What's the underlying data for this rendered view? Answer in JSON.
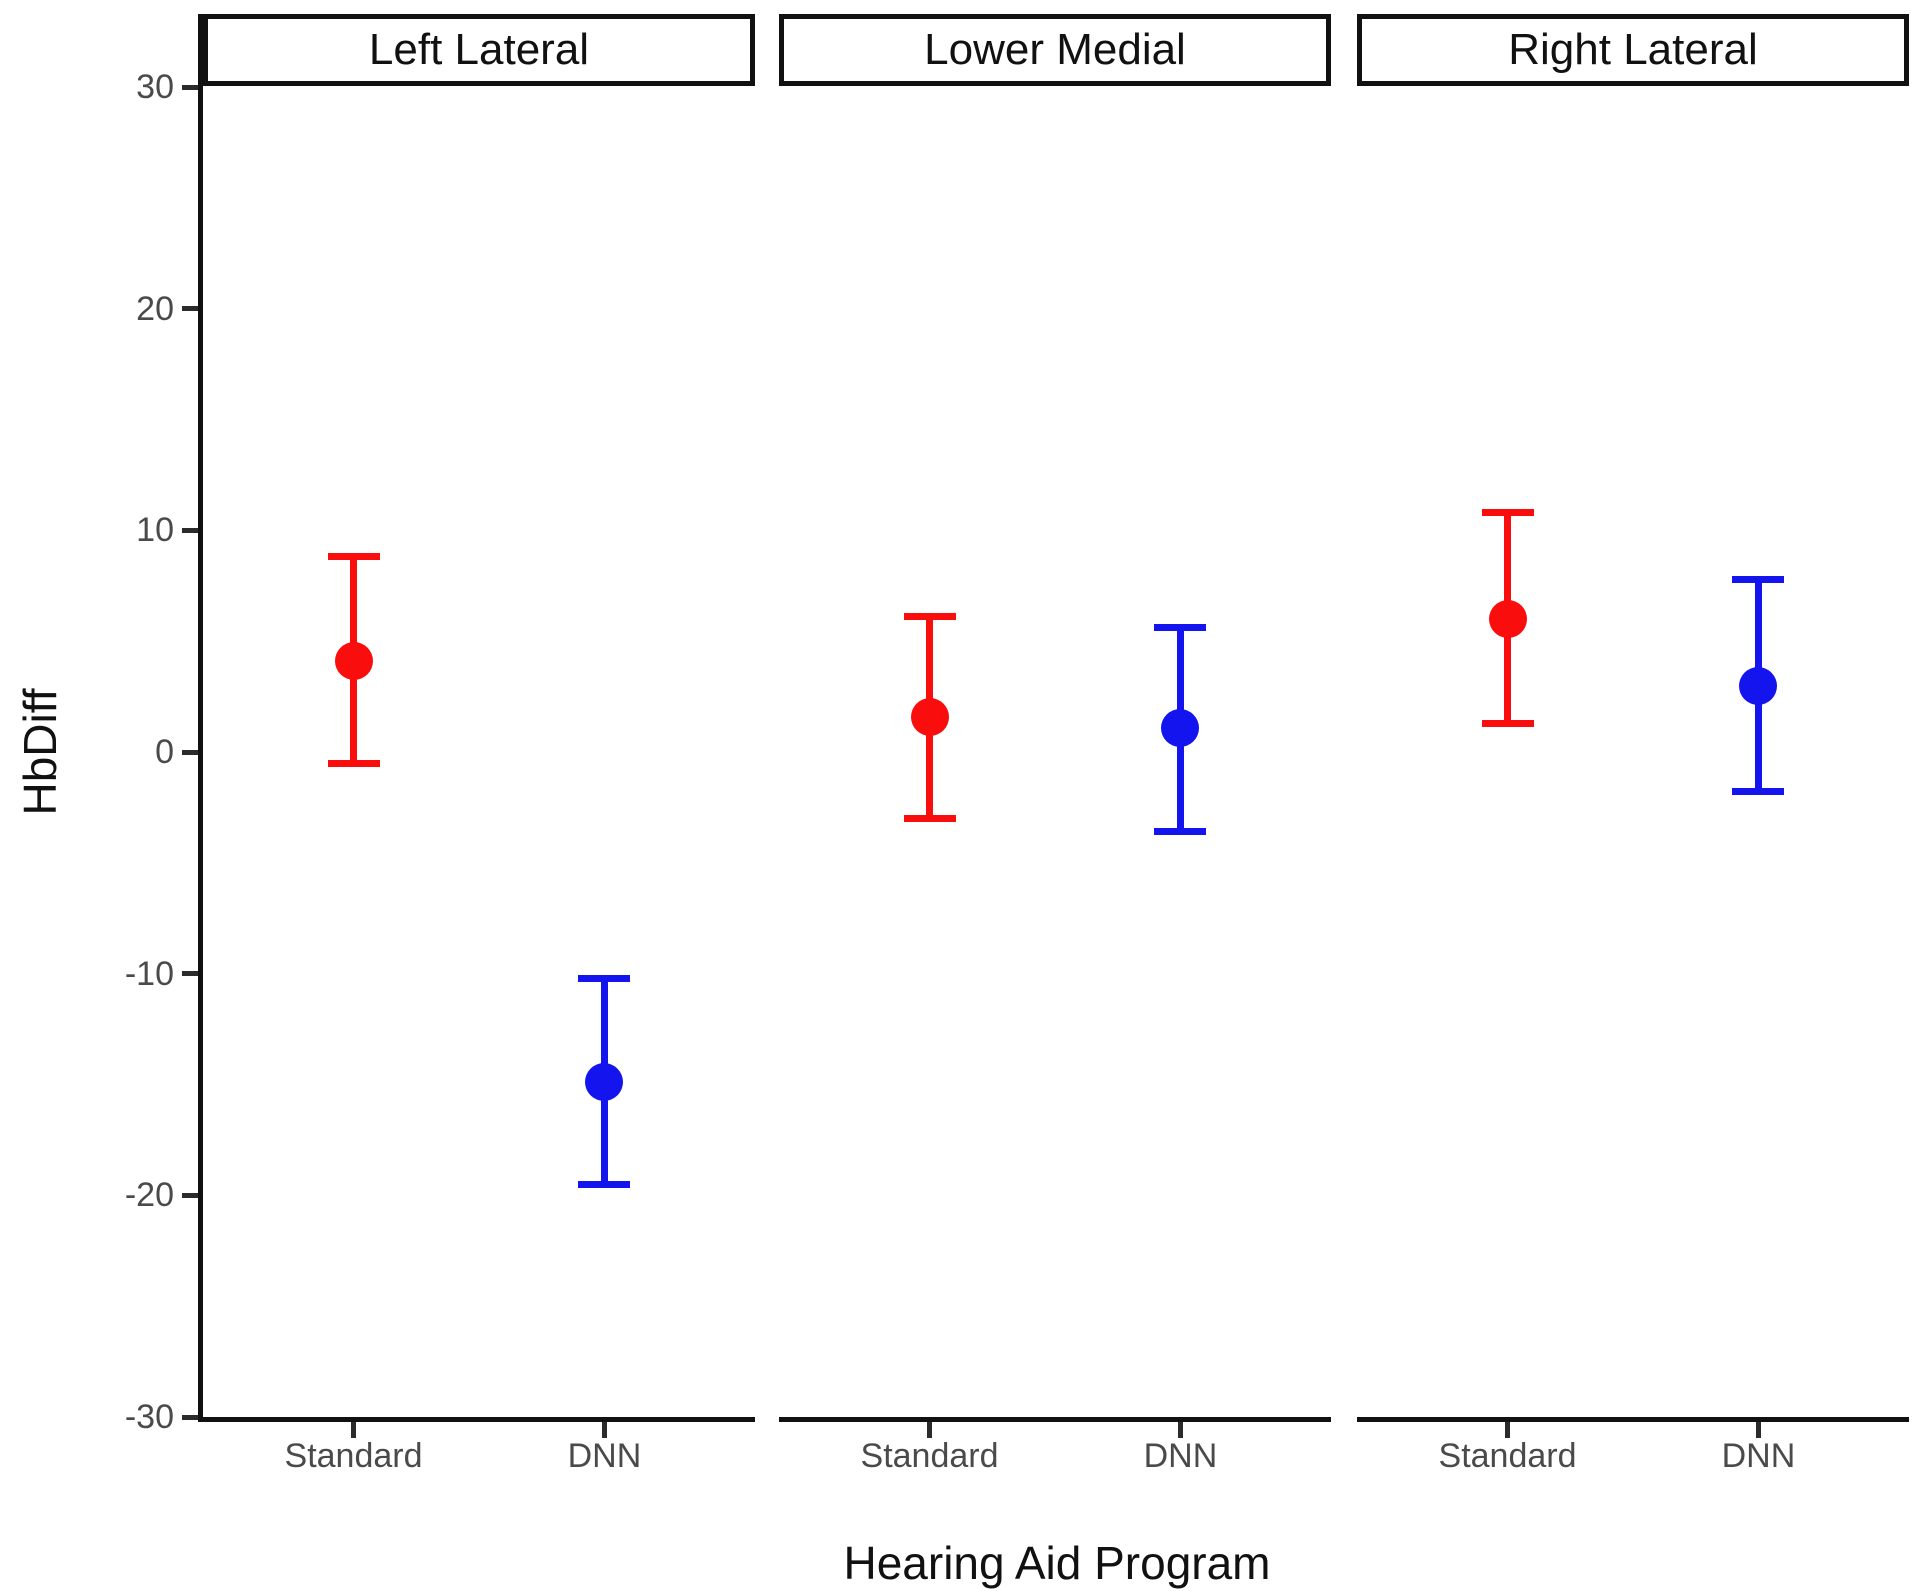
{
  "chart_data": {
    "type": "pointrange",
    "title": "",
    "xlabel": "Hearing Aid Program",
    "ylabel": "HbDiff",
    "ylim": [
      -30,
      30
    ],
    "yticks": [
      30,
      20,
      10,
      0,
      -10,
      -20,
      -30
    ],
    "grid": false,
    "legend": "none",
    "facet_variable_levels": [
      "Left Lateral",
      "Lower Medial",
      "Right Lateral"
    ],
    "categories": [
      "Standard",
      "DNN"
    ],
    "category_colors": {
      "Standard": "#FA0D0D",
      "DNN": "#1414EE"
    },
    "axis_color": "#111111",
    "tick_color": "#2b2b2b",
    "tick_label_color": "#4a4a4a",
    "facets": [
      {
        "label": "Left Lateral",
        "points": [
          {
            "group": "Standard",
            "value": 4.1,
            "lower": -0.5,
            "upper": 8.8
          },
          {
            "group": "DNN",
            "value": -14.9,
            "lower": -19.5,
            "upper": -10.2
          }
        ]
      },
      {
        "label": "Lower Medial",
        "points": [
          {
            "group": "Standard",
            "value": 1.6,
            "lower": -3.0,
            "upper": 6.1
          },
          {
            "group": "DNN",
            "value": 1.1,
            "lower": -3.6,
            "upper": 5.6
          }
        ]
      },
      {
        "label": "Right Lateral",
        "points": [
          {
            "group": "Standard",
            "value": 6.0,
            "lower": 1.3,
            "upper": 10.8
          },
          {
            "group": "DNN",
            "value": 3.0,
            "lower": -1.8,
            "upper": 7.8
          }
        ]
      }
    ]
  }
}
